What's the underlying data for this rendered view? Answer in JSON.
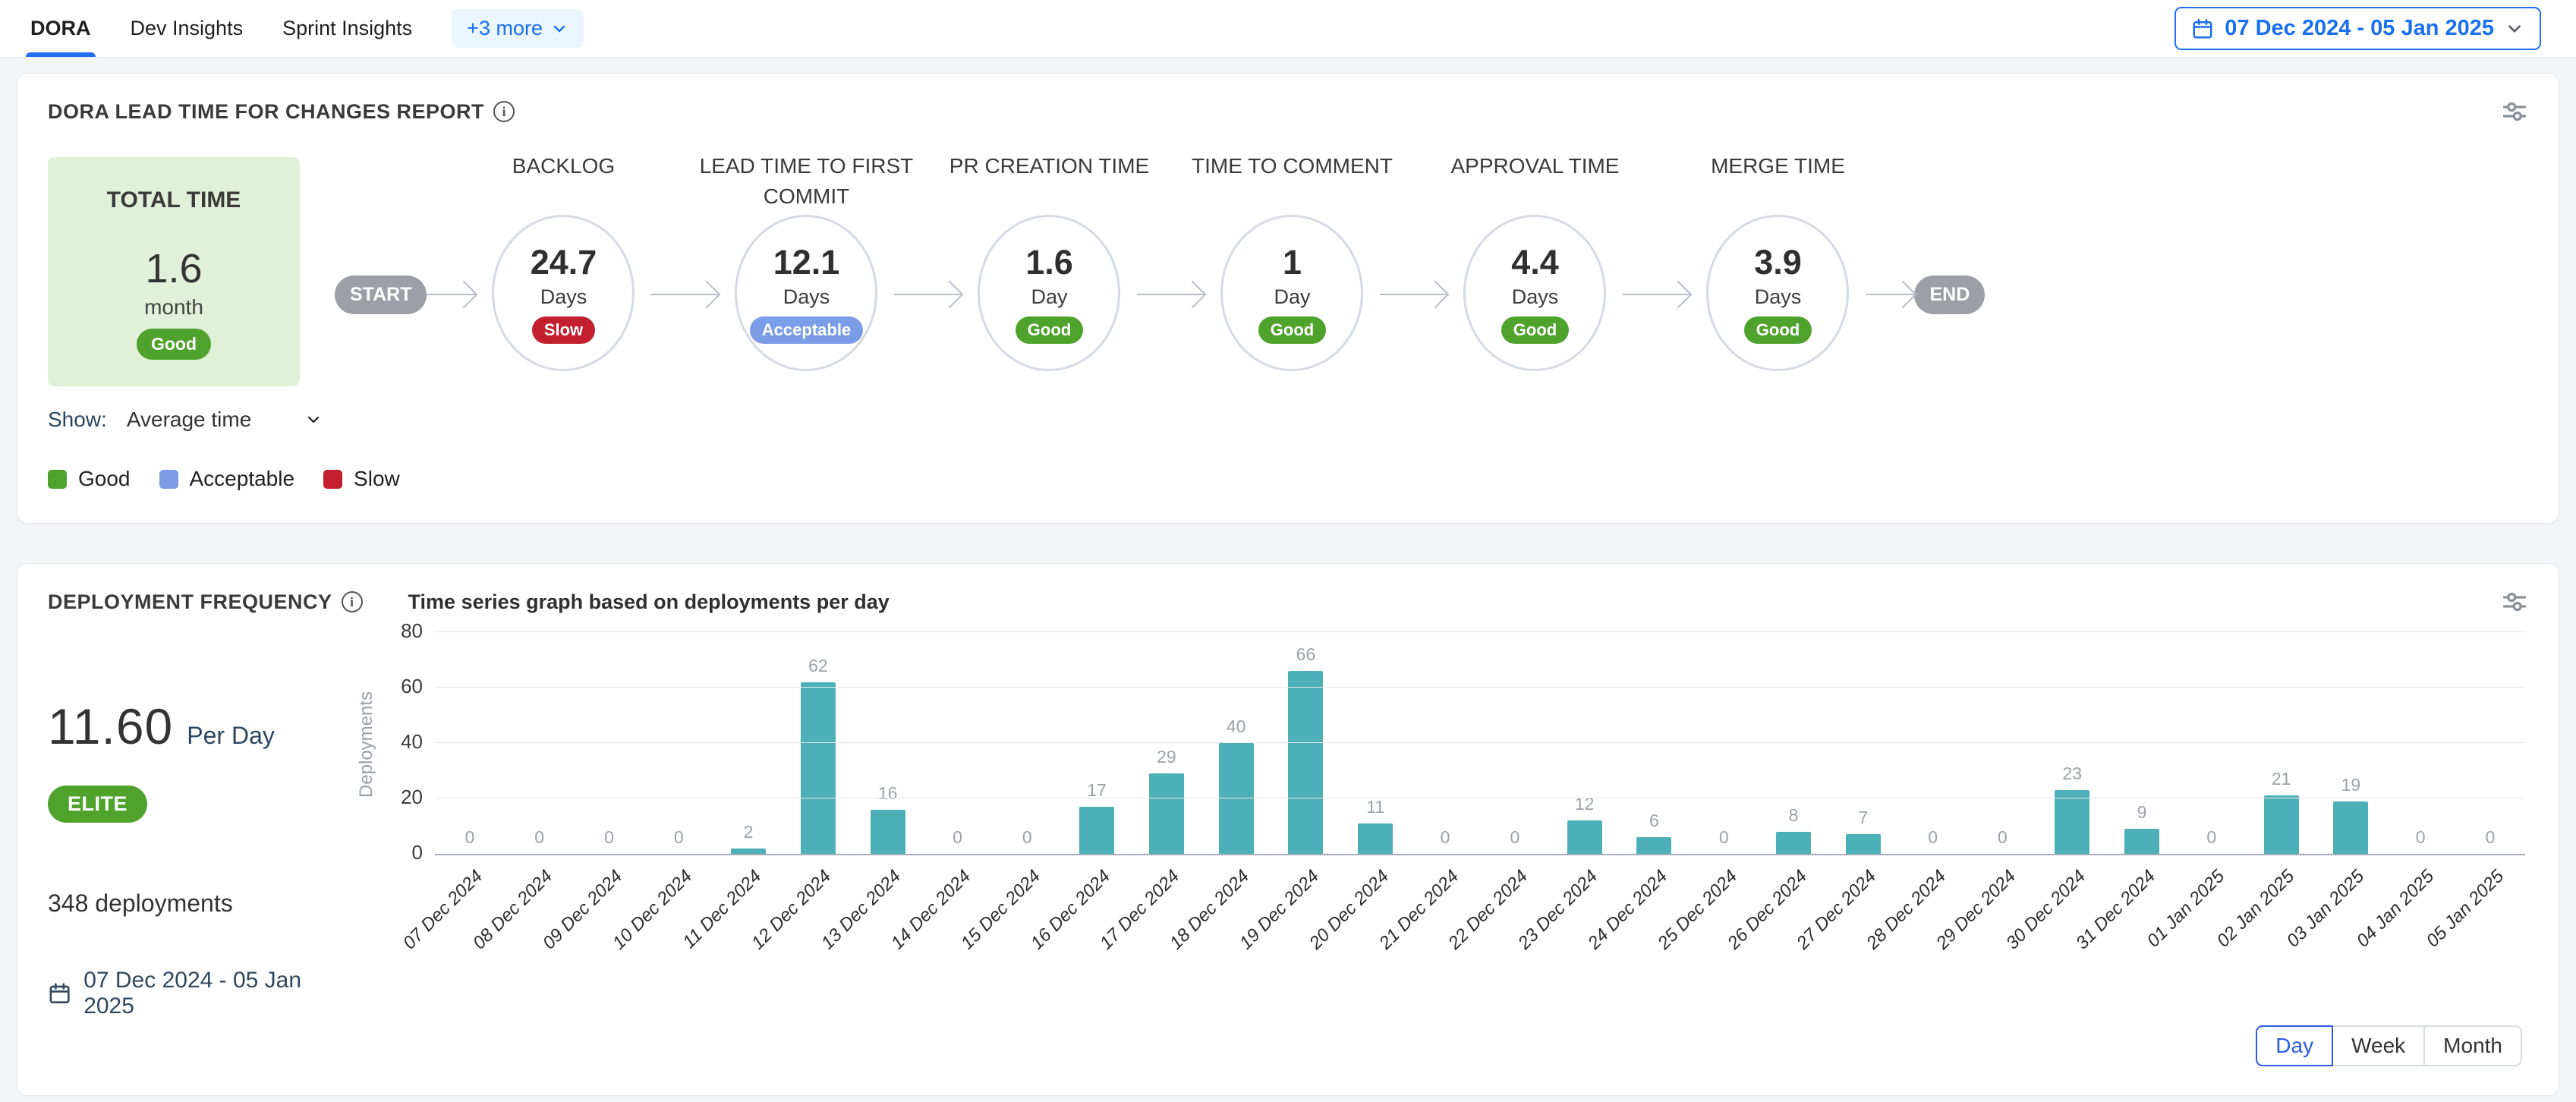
{
  "topbar": {
    "tabs": [
      {
        "label": "DORA",
        "active": true
      },
      {
        "label": "Dev Insights",
        "active": false
      },
      {
        "label": "Sprint Insights",
        "active": false
      }
    ],
    "more_label": "+3 more",
    "date_range": "07 Dec 2024 - 05 Jan 2025"
  },
  "lead_time": {
    "title": "DORA LEAD TIME FOR CHANGES REPORT",
    "total": {
      "label": "TOTAL TIME",
      "value": "1.6",
      "unit": "month",
      "status": "Good"
    },
    "start_label": "START",
    "end_label": "END",
    "stages": [
      {
        "name": "BACKLOG",
        "value": "24.7",
        "unit": "Days",
        "status": "Slow"
      },
      {
        "name": "LEAD TIME TO FIRST COMMIT",
        "value": "12.1",
        "unit": "Days",
        "status": "Acceptable"
      },
      {
        "name": "PR CREATION TIME",
        "value": "1.6",
        "unit": "Day",
        "status": "Good"
      },
      {
        "name": "TIME TO COMMENT",
        "value": "1",
        "unit": "Day",
        "status": "Good"
      },
      {
        "name": "APPROVAL TIME",
        "value": "4.4",
        "unit": "Days",
        "status": "Good"
      },
      {
        "name": "MERGE TIME",
        "value": "3.9",
        "unit": "Days",
        "status": "Good"
      }
    ],
    "show_label": "Show:",
    "show_value": "Average time",
    "legend": [
      {
        "label": "Good"
      },
      {
        "label": "Acceptable"
      },
      {
        "label": "Slow"
      }
    ]
  },
  "deployment": {
    "title": "DEPLOYMENT FREQUENCY",
    "subtitle": "Time series graph based on deployments per day",
    "rate": "11.60",
    "rate_unit": "Per Day",
    "tier": "ELITE",
    "total_label": "348 deployments",
    "date_range": "07 Dec 2024 - 05 Jan 2025",
    "granularity": [
      {
        "label": "Day",
        "active": true
      },
      {
        "label": "Week",
        "active": false
      },
      {
        "label": "Month",
        "active": false
      }
    ]
  },
  "chart_data": {
    "type": "bar",
    "title": "Time series graph based on deployments per day",
    "xlabel": "",
    "ylabel": "Deployments",
    "ylim": [
      0,
      80
    ],
    "yticks": [
      0,
      20,
      40,
      60,
      80
    ],
    "grid": true,
    "legend_position": "none",
    "categories": [
      "07 Dec 2024",
      "08 Dec 2024",
      "09 Dec 2024",
      "10 Dec 2024",
      "11 Dec 2024",
      "12 Dec 2024",
      "13 Dec 2024",
      "14 Dec 2024",
      "15 Dec 2024",
      "16 Dec 2024",
      "17 Dec 2024",
      "18 Dec 2024",
      "19 Dec 2024",
      "20 Dec 2024",
      "21 Dec 2024",
      "22 Dec 2024",
      "23 Dec 2024",
      "24 Dec 2024",
      "25 Dec 2024",
      "26 Dec 2024",
      "27 Dec 2024",
      "28 Dec 2024",
      "29 Dec 2024",
      "30 Dec 2024",
      "31 Dec 2024",
      "01 Jan 2025",
      "02 Jan 2025",
      "03 Jan 2025",
      "04 Jan 2025",
      "05 Jan 2025"
    ],
    "values": [
      0,
      0,
      0,
      0,
      2,
      62,
      16,
      0,
      0,
      17,
      29,
      40,
      66,
      11,
      0,
      0,
      12,
      6,
      0,
      8,
      7,
      0,
      0,
      23,
      9,
      0,
      21,
      19,
      0,
      0
    ],
    "bar_color": "#4db0b8"
  },
  "colors": {
    "status": {
      "Good": "#4fa32d",
      "Acceptable": "#7b9de8",
      "Slow": "#c31f2e"
    },
    "accent_blue": "#1a6ff0",
    "toggle_blue": "#2b5ce6",
    "bar_teal": "#4db0b8",
    "total_card_bg": "#e2efd9"
  }
}
